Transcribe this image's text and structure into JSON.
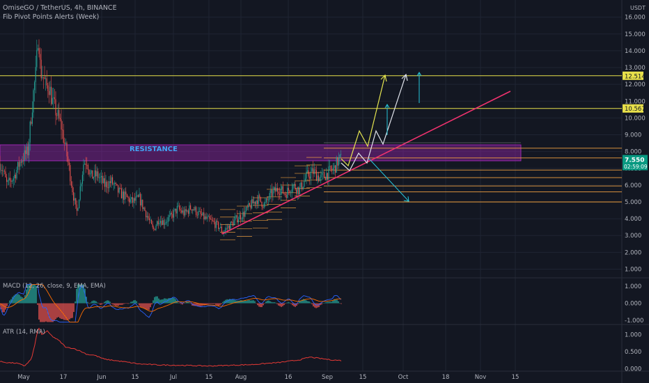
{
  "header": {
    "symbol_line": "OmiseGO / TetherUS, 4h, BINANCE",
    "indicator_line": "Fib Pivot Points Alerts (Week)",
    "currency": "USDT"
  },
  "colors": {
    "background": "#131722",
    "grid": "#1f2433",
    "text": "#b2b5be",
    "up": "#26a69a",
    "down": "#ef5350",
    "resistance_zone": "#9c27b0",
    "resistance_text": "#42a5f5",
    "yellow_level": "#e8e04a",
    "trendline": "#f0326e",
    "pivot_orange": "#f0a040",
    "price_tag": "#089981",
    "macd_line": "#2962ff",
    "signal_line": "#ff6d00",
    "atr_line": "#e53935"
  },
  "chart_data": [
    {
      "type": "candlestick",
      "title": "OmiseGO / TetherUS, 4h, BINANCE",
      "x_ticks": [
        "May",
        "17",
        "Jun",
        "15",
        "Jul",
        "15",
        "Aug",
        "16",
        "Sep",
        "15",
        "Oct",
        "18",
        "Nov",
        "15"
      ],
      "y_ticks": [
        "1.000",
        "2.000",
        "3.000",
        "4.000",
        "5.000",
        "6.000",
        "7.000",
        "8.000",
        "9.000",
        "10.000",
        "11.000",
        "12.000",
        "13.000",
        "14.000",
        "15.000",
        "16.000"
      ],
      "ylim": [
        0.5,
        16.2
      ],
      "price_path": [
        [
          -3,
          7.6
        ],
        [
          5,
          6.8
        ],
        [
          10,
          6.0
        ],
        [
          20,
          6.5
        ],
        [
          30,
          7.5
        ],
        [
          40,
          8.0
        ],
        [
          48,
          11.5
        ],
        [
          52,
          12.8
        ],
        [
          55,
          15.4
        ],
        [
          58,
          12.8
        ],
        [
          62,
          12.5
        ],
        [
          66,
          11.8
        ],
        [
          70,
          12.0
        ],
        [
          75,
          11.0
        ],
        [
          82,
          10.2
        ],
        [
          88,
          9.5
        ],
        [
          95,
          8.0
        ],
        [
          100,
          6.8
        ],
        [
          105,
          5.5
        ],
        [
          110,
          4.3
        ],
        [
          115,
          5.8
        ],
        [
          120,
          7.3
        ],
        [
          125,
          7.5
        ],
        [
          130,
          6.5
        ],
        [
          140,
          6.6
        ],
        [
          150,
          6.0
        ],
        [
          160,
          6.2
        ],
        [
          170,
          5.6
        ],
        [
          180,
          5.3
        ],
        [
          190,
          5.0
        ],
        [
          200,
          5.2
        ],
        [
          210,
          4.3
        ],
        [
          220,
          3.3
        ],
        [
          228,
          4.0
        ],
        [
          235,
          3.8
        ],
        [
          245,
          4.1
        ],
        [
          255,
          4.6
        ],
        [
          265,
          4.3
        ],
        [
          275,
          4.7
        ],
        [
          285,
          4.3
        ],
        [
          295,
          4.0
        ],
        [
          305,
          3.8
        ],
        [
          315,
          3.5
        ],
        [
          320,
          3.2
        ],
        [
          330,
          3.6
        ],
        [
          340,
          4.0
        ],
        [
          350,
          4.3
        ],
        [
          360,
          4.8
        ],
        [
          370,
          5.2
        ],
        [
          380,
          4.8
        ],
        [
          390,
          5.5
        ],
        [
          400,
          5.8
        ],
        [
          410,
          5.5
        ],
        [
          420,
          6.0
        ],
        [
          430,
          5.7
        ],
        [
          440,
          6.5
        ],
        [
          450,
          6.8
        ],
        [
          460,
          6.4
        ],
        [
          470,
          6.7
        ],
        [
          480,
          7.0
        ],
        [
          486,
          7.5
        ],
        [
          490,
          7.55
        ]
      ],
      "zones": [
        {
          "label": "RESISTANCE",
          "from": 7.45,
          "to": 8.4
        }
      ],
      "levels": [
        12.514,
        10.567
      ],
      "level_tags": [
        "12.514",
        "10.567"
      ],
      "last_price": "7.550",
      "countdown": "02:59:09",
      "pivot_levels": [
        8.2,
        7.62,
        6.9,
        6.45,
        5.95,
        5.6,
        5.0
      ]
    },
    {
      "type": "line",
      "title": "MACD (12, 26, close, 9, EMA, EMA)",
      "y_ticks": [
        "1.000",
        "0.000",
        "-1.000"
      ],
      "ylim": [
        -1.15,
        1.15
      ]
    },
    {
      "type": "line",
      "title": "ATR (14, RMA)",
      "y_ticks": [
        "1.000",
        "0.500",
        "0.000"
      ],
      "ylim": [
        0,
        1.25
      ],
      "series": [
        {
          "values": [
            [
              -3,
              0.22
            ],
            [
              10,
              0.18
            ],
            [
              25,
              0.16
            ],
            [
              35,
              0.08
            ],
            [
              45,
              0.28
            ],
            [
              50,
              0.7
            ],
            [
              55,
              1.22
            ],
            [
              60,
              1.0
            ],
            [
              68,
              1.1
            ],
            [
              75,
              0.95
            ],
            [
              85,
              0.82
            ],
            [
              95,
              0.62
            ],
            [
              105,
              0.6
            ],
            [
              115,
              0.52
            ],
            [
              125,
              0.42
            ],
            [
              135,
              0.4
            ],
            [
              150,
              0.28
            ],
            [
              165,
              0.24
            ],
            [
              180,
              0.2
            ],
            [
              200,
              0.14
            ],
            [
              230,
              0.11
            ],
            [
              260,
              0.1
            ],
            [
              300,
              0.08
            ],
            [
              330,
              0.1
            ],
            [
              360,
              0.12
            ],
            [
              400,
              0.18
            ],
            [
              430,
              0.26
            ],
            [
              445,
              0.34
            ],
            [
              460,
              0.3
            ],
            [
              475,
              0.26
            ],
            [
              490,
              0.24
            ]
          ]
        }
      ]
    }
  ]
}
